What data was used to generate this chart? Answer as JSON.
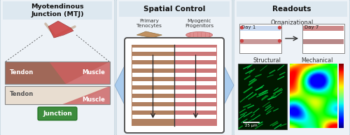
{
  "title_panel1": "Myotendinous\nJunction (MTJ)",
  "title_panel2": "Spatial Control",
  "title_panel3": "Readouts",
  "panel_bg": "#edf2f7",
  "panel_border": "#b8ccd8",
  "tendon_color_upper": "#a06858",
  "muscle_color_upper": "#cc6060",
  "tendon_color_lower": "#e0d0c0",
  "muscle_color_lower": "#cc6060",
  "junction_green": "#3d8c3d",
  "chip_left": "#b08060",
  "chip_right": "#cc7878",
  "chip_border": "#555555",
  "chip_blue_side": "#aaccee",
  "white": "#ffffff",
  "day1_stripe1": "#c8d8f0",
  "day1_stripe2": "#c89898",
  "day7_stripe1": "#cc8888",
  "day7_stripe2": "#b88888",
  "dot_red": "#cc4444",
  "structural_bg": "#001800",
  "label_dark": "#333333"
}
